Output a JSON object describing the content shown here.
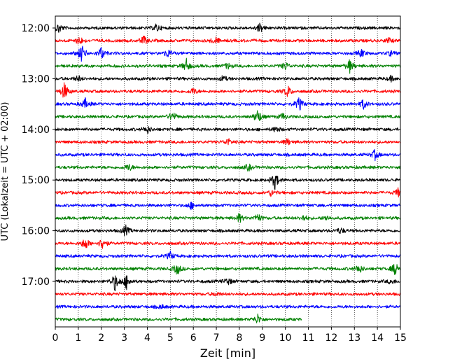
{
  "chart_data": {
    "type": "line",
    "title": "",
    "xlabel": "Zeit  [min]",
    "ylabel": "UTC (Lokalzeit = UTC + 02:00)",
    "xlim": [
      0,
      15
    ],
    "x_ticks": [
      "0",
      "1",
      "2",
      "3",
      "4",
      "5",
      "6",
      "7",
      "8",
      "9",
      "10",
      "11",
      "12",
      "13",
      "14",
      "15"
    ],
    "y_tick_labels": [
      "12:00",
      "13:00",
      "14:00",
      "15:00",
      "16:00",
      "17:00"
    ],
    "grid": "vertical dotted",
    "color_cycle": [
      "#000000",
      "#ff0000",
      "#0000ff",
      "#008000"
    ],
    "series": [
      {
        "start": "12:00",
        "color": "#000000",
        "events": [
          [
            0.15,
            1.0
          ],
          [
            4.4,
            0.8
          ],
          [
            8.9,
            1.0
          ]
        ]
      },
      {
        "start": "12:15",
        "color": "#ff0000",
        "events": [
          [
            1.05,
            0.9
          ],
          [
            3.85,
            0.9
          ],
          [
            6.95,
            0.8
          ],
          [
            14.5,
            0.5
          ]
        ]
      },
      {
        "start": "12:30",
        "color": "#0000ff",
        "events": [
          [
            1.15,
            1.8
          ],
          [
            2.0,
            1.3
          ],
          [
            4.9,
            0.8
          ],
          [
            13.3,
            0.8
          ],
          [
            14.6,
            0.5
          ]
        ]
      },
      {
        "start": "12:45",
        "color": "#008000",
        "events": [
          [
            5.7,
            1.3
          ],
          [
            7.5,
            0.6
          ],
          [
            10.0,
            0.8
          ],
          [
            12.8,
            1.3
          ]
        ]
      },
      {
        "start": "13:00",
        "color": "#000000",
        "events": [
          [
            1.0,
            0.6
          ],
          [
            7.3,
            0.6
          ],
          [
            14.6,
            0.5
          ]
        ]
      },
      {
        "start": "13:15",
        "color": "#ff0000",
        "events": [
          [
            0.4,
            1.8
          ],
          [
            6.0,
            0.7
          ],
          [
            10.1,
            1.2
          ]
        ]
      },
      {
        "start": "13:30",
        "color": "#0000ff",
        "events": [
          [
            1.3,
            1.0
          ],
          [
            10.6,
            1.4
          ],
          [
            13.4,
            1.0
          ]
        ]
      },
      {
        "start": "13:45",
        "color": "#008000",
        "events": [
          [
            5.1,
            1.0
          ],
          [
            8.8,
            1.5
          ],
          [
            9.9,
            0.7
          ]
        ]
      },
      {
        "start": "14:00",
        "color": "#000000",
        "events": [
          [
            4.0,
            0.8
          ],
          [
            9.6,
            0.6
          ]
        ]
      },
      {
        "start": "14:15",
        "color": "#ff0000",
        "events": [
          [
            7.5,
            0.7
          ],
          [
            10.1,
            0.6
          ]
        ]
      },
      {
        "start": "14:30",
        "color": "#0000ff",
        "events": [
          [
            13.9,
            1.0
          ]
        ]
      },
      {
        "start": "14:45",
        "color": "#008000",
        "events": [
          [
            3.2,
            0.7
          ],
          [
            8.4,
            0.7
          ]
        ]
      },
      {
        "start": "15:00",
        "color": "#000000",
        "events": [
          [
            9.55,
            1.8
          ]
        ]
      },
      {
        "start": "15:15",
        "color": "#ff0000",
        "events": [
          [
            9.4,
            0.7
          ],
          [
            14.9,
            0.8
          ]
        ]
      },
      {
        "start": "15:30",
        "color": "#0000ff",
        "events": [
          [
            5.9,
            0.7
          ]
        ]
      },
      {
        "start": "15:45",
        "color": "#008000",
        "events": [
          [
            8.0,
            0.9
          ],
          [
            8.8,
            0.9
          ],
          [
            10.8,
            0.6
          ],
          [
            11.8,
            0.5
          ]
        ]
      },
      {
        "start": "16:00",
        "color": "#000000",
        "events": [
          [
            3.05,
            1.1
          ],
          [
            12.4,
            0.6
          ]
        ]
      },
      {
        "start": "16:15",
        "color": "#ff0000",
        "events": [
          [
            1.3,
            1.3
          ],
          [
            2.05,
            1.2
          ]
        ]
      },
      {
        "start": "16:30",
        "color": "#0000ff",
        "events": [
          [
            5.0,
            0.8
          ]
        ]
      },
      {
        "start": "16:45",
        "color": "#008000",
        "events": [
          [
            5.3,
            1.2
          ],
          [
            13.2,
            1.0
          ],
          [
            14.8,
            1.5
          ]
        ]
      },
      {
        "start": "17:00",
        "color": "#000000",
        "events": [
          [
            2.6,
            1.8
          ],
          [
            3.1,
            1.5
          ],
          [
            7.5,
            0.8
          ],
          [
            14.6,
            0.5
          ]
        ]
      },
      {
        "start": "17:15",
        "color": "#ff0000",
        "events": [
          [
            7.0,
            0.4
          ]
        ]
      },
      {
        "start": "17:30",
        "color": "#0000ff",
        "events": [
          [
            4.6,
            0.4
          ]
        ]
      },
      {
        "start": "17:45",
        "color": "#008000",
        "end_min": 10.7,
        "events": [
          [
            8.8,
            1.0
          ]
        ]
      }
    ]
  }
}
